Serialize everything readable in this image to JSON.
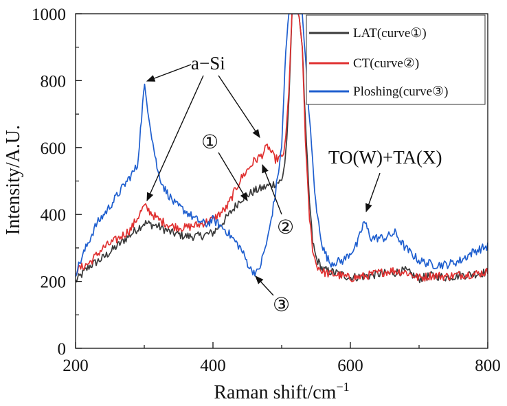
{
  "chart_data": {
    "type": "line",
    "xlabel": "Raman shift/cm",
    "xlabel_sup": "−1",
    "ylabel": "Intensity/A.U.",
    "xlim": [
      200,
      800
    ],
    "ylim": [
      0,
      1000
    ],
    "xticks": [
      "200",
      "400",
      "600",
      "800"
    ],
    "yticks": [
      "0",
      "200",
      "400",
      "600",
      "800",
      "1000"
    ],
    "grid": false,
    "legend_position": "top-right",
    "series": [
      {
        "name": "LAT(curve①)",
        "color": "#3a3a3a",
        "x": [
          200,
          220,
          240,
          260,
          280,
          300,
          320,
          340,
          360,
          380,
          400,
          420,
          440,
          460,
          480,
          500,
          505,
          510,
          515,
          520,
          525,
          530,
          535,
          540,
          545,
          550,
          560,
          570,
          580,
          600,
          620,
          640,
          660,
          680,
          700,
          720,
          740,
          760,
          780,
          800
        ],
        "y": [
          200,
          245,
          270,
          305,
          340,
          375,
          365,
          345,
          335,
          335,
          345,
          390,
          445,
          470,
          485,
          500,
          560,
          700,
          1000,
          1000,
          1000,
          900,
          650,
          450,
          320,
          270,
          235,
          230,
          225,
          212,
          215,
          222,
          225,
          232,
          208,
          218,
          212,
          218,
          222,
          228
        ]
      },
      {
        "name": "CT(curve②)",
        "color": "#e03030",
        "x": [
          200,
          220,
          240,
          260,
          280,
          300,
          320,
          340,
          360,
          380,
          400,
          420,
          440,
          460,
          470,
          480,
          490,
          500,
          505,
          510,
          515,
          520,
          525,
          530,
          535,
          540,
          545,
          550,
          560,
          570,
          580,
          600,
          620,
          640,
          660,
          680,
          700,
          720,
          740,
          760,
          780,
          800
        ],
        "y": [
          232,
          255,
          300,
          325,
          355,
          425,
          385,
          365,
          360,
          370,
          385,
          420,
          505,
          560,
          575,
          605,
          565,
          570,
          600,
          750,
          1000,
          1000,
          1000,
          900,
          600,
          400,
          300,
          250,
          228,
          222,
          220,
          210,
          215,
          225,
          232,
          228,
          210,
          218,
          215,
          220,
          222,
          228
        ]
      },
      {
        "name": "Ploshing(curve③)",
        "color": "#1f5fcf",
        "x": [
          200,
          215,
          230,
          245,
          260,
          275,
          290,
          300,
          305,
          312,
          320,
          330,
          345,
          360,
          375,
          390,
          400,
          420,
          440,
          455,
          465,
          470,
          480,
          490,
          500,
          505,
          510,
          515,
          520,
          530,
          540,
          545,
          550,
          560,
          570,
          590,
          610,
          620,
          630,
          650,
          665,
          680,
          700,
          720,
          740,
          760,
          780,
          800
        ],
        "y": [
          225,
          300,
          370,
          410,
          455,
          500,
          545,
          785,
          720,
          620,
          525,
          475,
          430,
          410,
          385,
          370,
          385,
          350,
          300,
          235,
          225,
          255,
          330,
          450,
          600,
          850,
          1000,
          1000,
          1000,
          1000,
          700,
          560,
          420,
          300,
          255,
          262,
          310,
          380,
          330,
          330,
          345,
          300,
          262,
          250,
          250,
          262,
          290,
          305
        ]
      }
    ],
    "annotations": {
      "a_si": "a−Si",
      "to_ta": "TO(W)+TA(X)",
      "circle_1": "①",
      "circle_2": "②",
      "circle_3": "③"
    }
  }
}
